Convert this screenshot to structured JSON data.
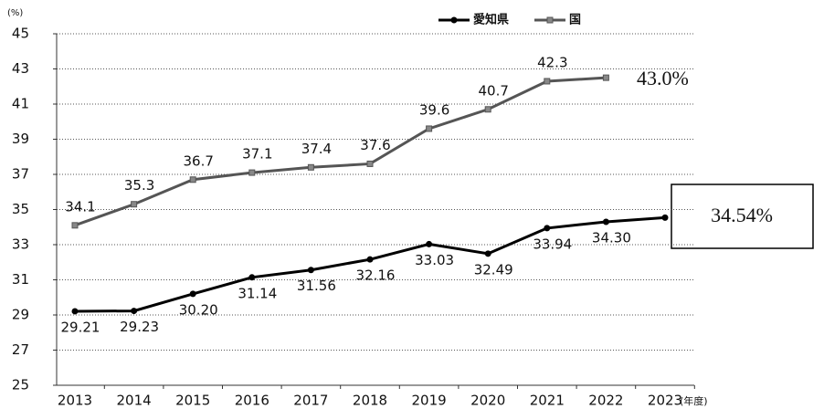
{
  "chart_data": {
    "type": "line",
    "y_unit": "(%)",
    "x_unit": "(年度)",
    "categories": [
      "2013",
      "2014",
      "2015",
      "2016",
      "2017",
      "2018",
      "2019",
      "2020",
      "2021",
      "2022",
      "2023"
    ],
    "series": [
      {
        "name": "愛知県",
        "color": "#000000",
        "marker": "circle",
        "values": [
          29.21,
          29.23,
          30.2,
          31.14,
          31.56,
          32.16,
          33.03,
          32.49,
          33.94,
          34.3,
          34.54
        ],
        "value_labels": [
          "29.21",
          "29.23",
          "30.20",
          "31.14",
          "31.56",
          "32.16",
          "33.03",
          "32.49",
          "33.94",
          "34.30",
          "34.54%"
        ]
      },
      {
        "name": "国",
        "color": "#555555",
        "marker": "square",
        "values": [
          34.1,
          35.3,
          36.7,
          37.1,
          37.4,
          37.6,
          39.6,
          40.7,
          42.3,
          42.5,
          null
        ],
        "value_labels": [
          "34.1",
          "35.3",
          "36.7",
          "37.1",
          "37.4",
          "37.6",
          "39.6",
          "40.7",
          "42.3",
          null,
          null
        ]
      }
    ],
    "annotations": [
      "43.0%"
    ],
    "ylim": [
      25,
      45
    ],
    "yticks": [
      25,
      27,
      29,
      31,
      33,
      35,
      37,
      39,
      41,
      43,
      45
    ],
    "grid": true
  }
}
